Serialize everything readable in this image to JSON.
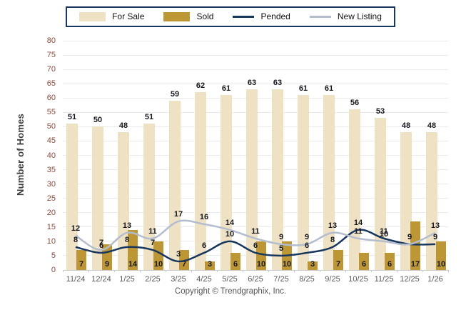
{
  "legend": {
    "items": [
      {
        "label": "For Sale",
        "type": "bar",
        "color": "#efe1c4"
      },
      {
        "label": "Sold",
        "type": "bar",
        "color": "#bd9636"
      },
      {
        "label": "Pended",
        "type": "line",
        "color": "#17375e"
      },
      {
        "label": "New Listing",
        "type": "line",
        "color": "#b4bdce"
      }
    ]
  },
  "chart_data": {
    "type": "bar+line combo",
    "title": "",
    "xlabel": "",
    "ylabel": "Number of Homes",
    "ylim": [
      0,
      80
    ],
    "ytick_step": 5,
    "grid": "horizontal",
    "legend_position": "top-center",
    "categories": [
      "11/24",
      "12/24",
      "1/25",
      "2/25",
      "3/25",
      "4/25",
      "5/25",
      "6/25",
      "7/25",
      "8/25",
      "9/25",
      "10/25",
      "11/25",
      "12/25",
      "1/26"
    ],
    "series": [
      {
        "name": "For Sale",
        "type": "bar",
        "color": "#efe1c4",
        "values": [
          51,
          50,
          48,
          51,
          59,
          62,
          61,
          63,
          63,
          61,
          61,
          56,
          53,
          48,
          48
        ]
      },
      {
        "name": "Sold",
        "type": "bar",
        "color": "#bd9636",
        "values": [
          7,
          9,
          14,
          10,
          7,
          3,
          6,
          10,
          10,
          3,
          7,
          6,
          6,
          17,
          10
        ]
      },
      {
        "name": "Pended",
        "type": "line",
        "color": "#17375e",
        "values": [
          8,
          6,
          8,
          7,
          3,
          6,
          10,
          6,
          5,
          6,
          8,
          14,
          11,
          9,
          9
        ]
      },
      {
        "name": "New Listing",
        "type": "line",
        "color": "#b4bdce",
        "values": [
          12,
          7,
          13,
          11,
          17,
          16,
          14,
          11,
          9,
          9,
          13,
          11,
          10,
          9,
          13
        ]
      }
    ]
  },
  "footer": {
    "copyright": "Copyright © Trendgraphix, Inc."
  }
}
